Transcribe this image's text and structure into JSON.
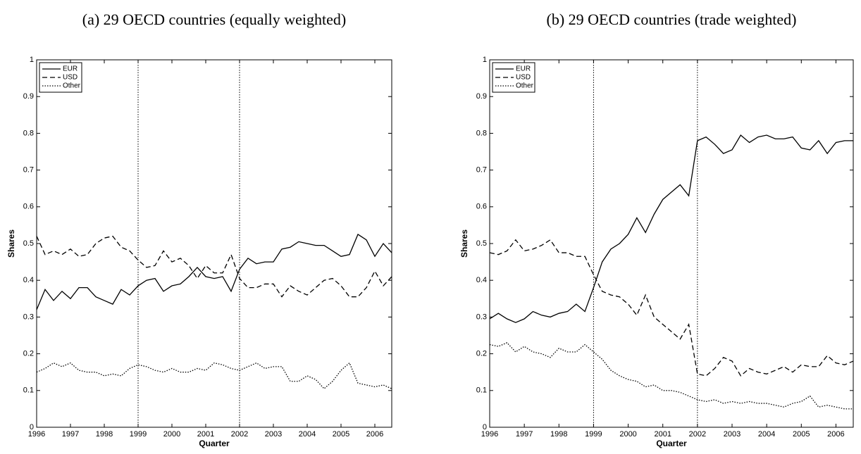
{
  "chart_data": [
    {
      "type": "line",
      "title": "(a) 29 OECD countries (equally weighted)",
      "x_label": "Quarter",
      "y_label": "Shares",
      "x": [
        1996,
        1996.25,
        1996.5,
        1996.75,
        1997,
        1997.25,
        1997.5,
        1997.75,
        1998,
        1998.25,
        1998.5,
        1998.75,
        1999,
        1999.25,
        1999.5,
        1999.75,
        2000,
        2000.25,
        2000.5,
        2000.75,
        2001,
        2001.25,
        2001.5,
        2001.75,
        2002,
        2002.25,
        2002.5,
        2002.75,
        2003,
        2003.25,
        2003.5,
        2003.75,
        2004,
        2004.25,
        2004.5,
        2004.75,
        2005,
        2005.25,
        2005.5,
        2005.75,
        2006,
        2006.25,
        2006.5
      ],
      "series": [
        {
          "name": "EUR",
          "color": "#000000",
          "linestyle": "solid",
          "values": [
            0.32,
            0.375,
            0.345,
            0.37,
            0.35,
            0.38,
            0.38,
            0.355,
            0.345,
            0.335,
            0.375,
            0.36,
            0.385,
            0.4,
            0.405,
            0.37,
            0.385,
            0.39,
            0.41,
            0.435,
            0.41,
            0.405,
            0.41,
            0.37,
            0.43,
            0.46,
            0.445,
            0.45,
            0.45,
            0.485,
            0.49,
            0.505,
            0.5,
            0.495,
            0.495,
            0.48,
            0.465,
            0.47,
            0.525,
            0.51,
            0.465,
            0.5,
            0.475
          ]
        },
        {
          "name": "USD",
          "color": "#000000",
          "linestyle": "dashed",
          "values": [
            0.52,
            0.47,
            0.48,
            0.47,
            0.485,
            0.465,
            0.47,
            0.5,
            0.515,
            0.52,
            0.49,
            0.48,
            0.455,
            0.435,
            0.44,
            0.48,
            0.45,
            0.46,
            0.44,
            0.405,
            0.44,
            0.42,
            0.42,
            0.47,
            0.405,
            0.38,
            0.38,
            0.39,
            0.39,
            0.355,
            0.385,
            0.37,
            0.36,
            0.38,
            0.4,
            0.405,
            0.385,
            0.355,
            0.355,
            0.38,
            0.425,
            0.385,
            0.41
          ]
        },
        {
          "name": "Other",
          "color": "#000000",
          "linestyle": "dotted",
          "values": [
            0.15,
            0.16,
            0.175,
            0.165,
            0.175,
            0.155,
            0.15,
            0.15,
            0.14,
            0.145,
            0.14,
            0.16,
            0.17,
            0.165,
            0.155,
            0.15,
            0.16,
            0.15,
            0.15,
            0.16,
            0.155,
            0.175,
            0.17,
            0.16,
            0.155,
            0.165,
            0.175,
            0.16,
            0.165,
            0.165,
            0.125,
            0.125,
            0.14,
            0.13,
            0.105,
            0.125,
            0.155,
            0.175,
            0.12,
            0.115,
            0.11,
            0.115,
            0.105
          ]
        }
      ],
      "vlines": [
        1999,
        2002
      ],
      "xlim": [
        1996,
        2006.5
      ],
      "xticks": [
        1996,
        1997,
        1998,
        1999,
        2000,
        2001,
        2002,
        2003,
        2004,
        2005,
        2006
      ],
      "ylim": [
        0,
        1
      ],
      "yticks": [
        0,
        0.1,
        0.2,
        0.3,
        0.4,
        0.5,
        0.6,
        0.7,
        0.8,
        0.9,
        1
      ],
      "legend": "top-left"
    },
    {
      "type": "line",
      "title": "(b) 29 OECD countries (trade weighted)",
      "x_label": "Quarter",
      "y_label": "Shares",
      "x": [
        1996,
        1996.25,
        1996.5,
        1996.75,
        1997,
        1997.25,
        1997.5,
        1997.75,
        1998,
        1998.25,
        1998.5,
        1998.75,
        1999,
        1999.25,
        1999.5,
        1999.75,
        2000,
        2000.25,
        2000.5,
        2000.75,
        2001,
        2001.25,
        2001.5,
        2001.75,
        2002,
        2002.25,
        2002.5,
        2002.75,
        2003,
        2003.25,
        2003.5,
        2003.75,
        2004,
        2004.25,
        2004.5,
        2004.75,
        2005,
        2005.25,
        2005.5,
        2005.75,
        2006,
        2006.25,
        2006.5
      ],
      "series": [
        {
          "name": "EUR",
          "color": "#000000",
          "linestyle": "solid",
          "values": [
            0.295,
            0.31,
            0.295,
            0.285,
            0.295,
            0.315,
            0.305,
            0.3,
            0.31,
            0.315,
            0.335,
            0.315,
            0.38,
            0.45,
            0.485,
            0.5,
            0.525,
            0.57,
            0.53,
            0.58,
            0.62,
            0.64,
            0.66,
            0.63,
            0.78,
            0.79,
            0.77,
            0.745,
            0.755,
            0.795,
            0.775,
            0.79,
            0.795,
            0.785,
            0.785,
            0.79,
            0.76,
            0.755,
            0.78,
            0.745,
            0.775,
            0.78,
            0.78
          ]
        },
        {
          "name": "USD",
          "color": "#000000",
          "linestyle": "dashed",
          "values": [
            0.475,
            0.47,
            0.48,
            0.51,
            0.48,
            0.485,
            0.495,
            0.51,
            0.475,
            0.475,
            0.465,
            0.465,
            0.415,
            0.37,
            0.36,
            0.355,
            0.335,
            0.305,
            0.36,
            0.3,
            0.28,
            0.26,
            0.24,
            0.28,
            0.145,
            0.14,
            0.16,
            0.19,
            0.18,
            0.14,
            0.16,
            0.15,
            0.145,
            0.155,
            0.165,
            0.15,
            0.17,
            0.165,
            0.165,
            0.195,
            0.175,
            0.17,
            0.18
          ]
        },
        {
          "name": "Other",
          "color": "#000000",
          "linestyle": "dotted",
          "values": [
            0.225,
            0.22,
            0.23,
            0.205,
            0.22,
            0.205,
            0.2,
            0.19,
            0.215,
            0.205,
            0.205,
            0.225,
            0.205,
            0.185,
            0.155,
            0.14,
            0.13,
            0.125,
            0.11,
            0.115,
            0.1,
            0.1,
            0.095,
            0.085,
            0.075,
            0.07,
            0.075,
            0.065,
            0.07,
            0.065,
            0.07,
            0.065,
            0.065,
            0.06,
            0.055,
            0.065,
            0.07,
            0.085,
            0.055,
            0.06,
            0.055,
            0.05,
            0.05
          ]
        }
      ],
      "vlines": [
        1999,
        2002
      ],
      "xlim": [
        1996,
        2006.5
      ],
      "xticks": [
        1996,
        1997,
        1998,
        1999,
        2000,
        2001,
        2002,
        2003,
        2004,
        2005,
        2006
      ],
      "ylim": [
        0,
        1
      ],
      "yticks": [
        0,
        0.1,
        0.2,
        0.3,
        0.4,
        0.5,
        0.6,
        0.7,
        0.8,
        0.9,
        1
      ],
      "legend": "top-left"
    }
  ]
}
